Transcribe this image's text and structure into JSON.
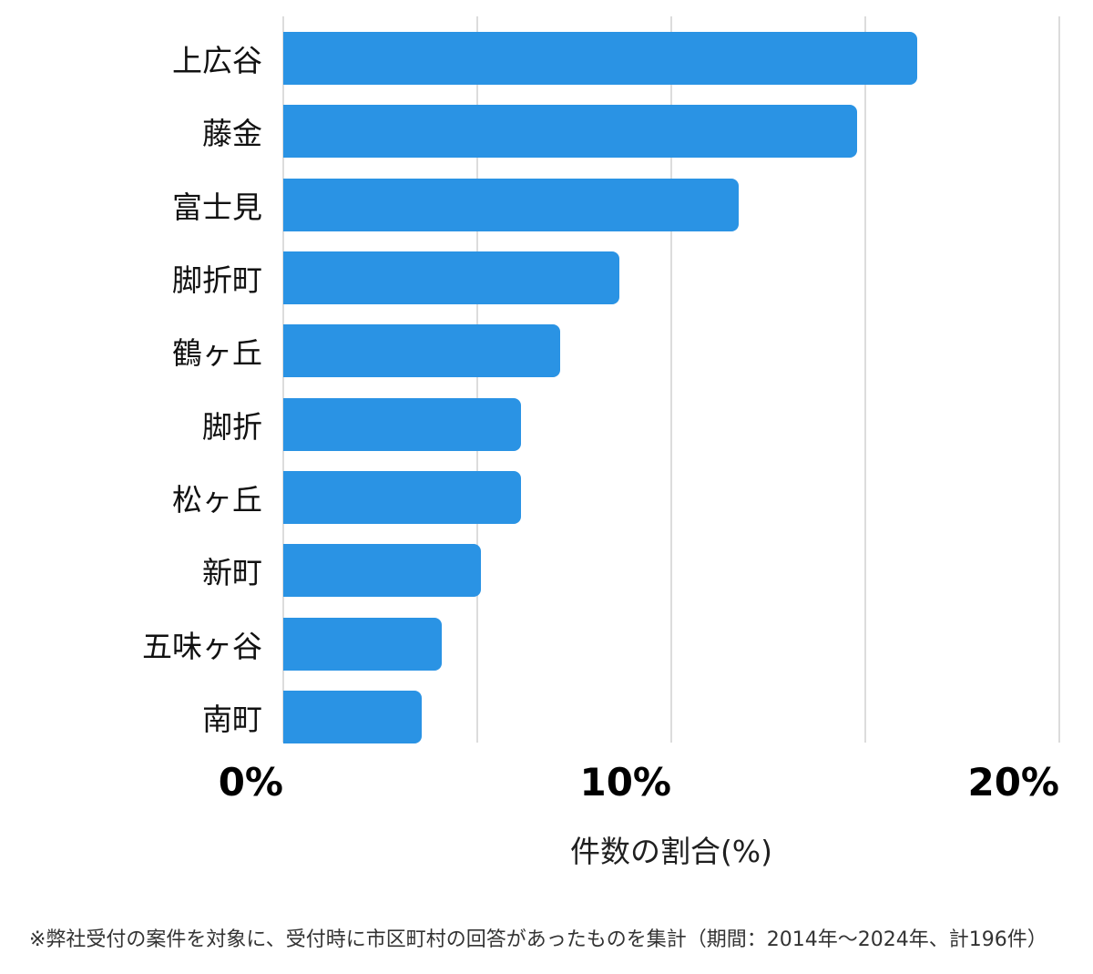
{
  "chart_data": {
    "type": "bar",
    "orientation": "horizontal",
    "title": "",
    "categories": [
      "上広谷",
      "藤金",
      "富士見",
      "脚折町",
      "鶴ヶ丘",
      "脚折",
      "松ヶ丘",
      "新町",
      "五味ヶ谷",
      "南町"
    ],
    "values": [
      16.33,
      14.8,
      11.73,
      8.67,
      7.14,
      6.12,
      6.12,
      5.1,
      4.08,
      3.57
    ],
    "xlabel": "件数の割合(%)",
    "xlim": [
      0,
      20
    ],
    "x_ticks": [
      {
        "label": "0%",
        "value": 0
      },
      {
        "label": "10%",
        "value": 10
      },
      {
        "label": "20%",
        "value": 20
      }
    ],
    "gridline_values": [
      0,
      5,
      10,
      15,
      20
    ],
    "grid": "vertical",
    "legend": "none",
    "bar_color": "#2a93e4"
  },
  "footnote": "※弊社受付の案件を対象に、受付時に市区町村の回答があったものを集計（期間：2014年～2024年、計196件）",
  "colors": {
    "bar": "#2a93e4",
    "gridline": "#dcdcdc",
    "category_text": "#111111",
    "tick_text": "#000000",
    "footnote_text": "#333333"
  }
}
